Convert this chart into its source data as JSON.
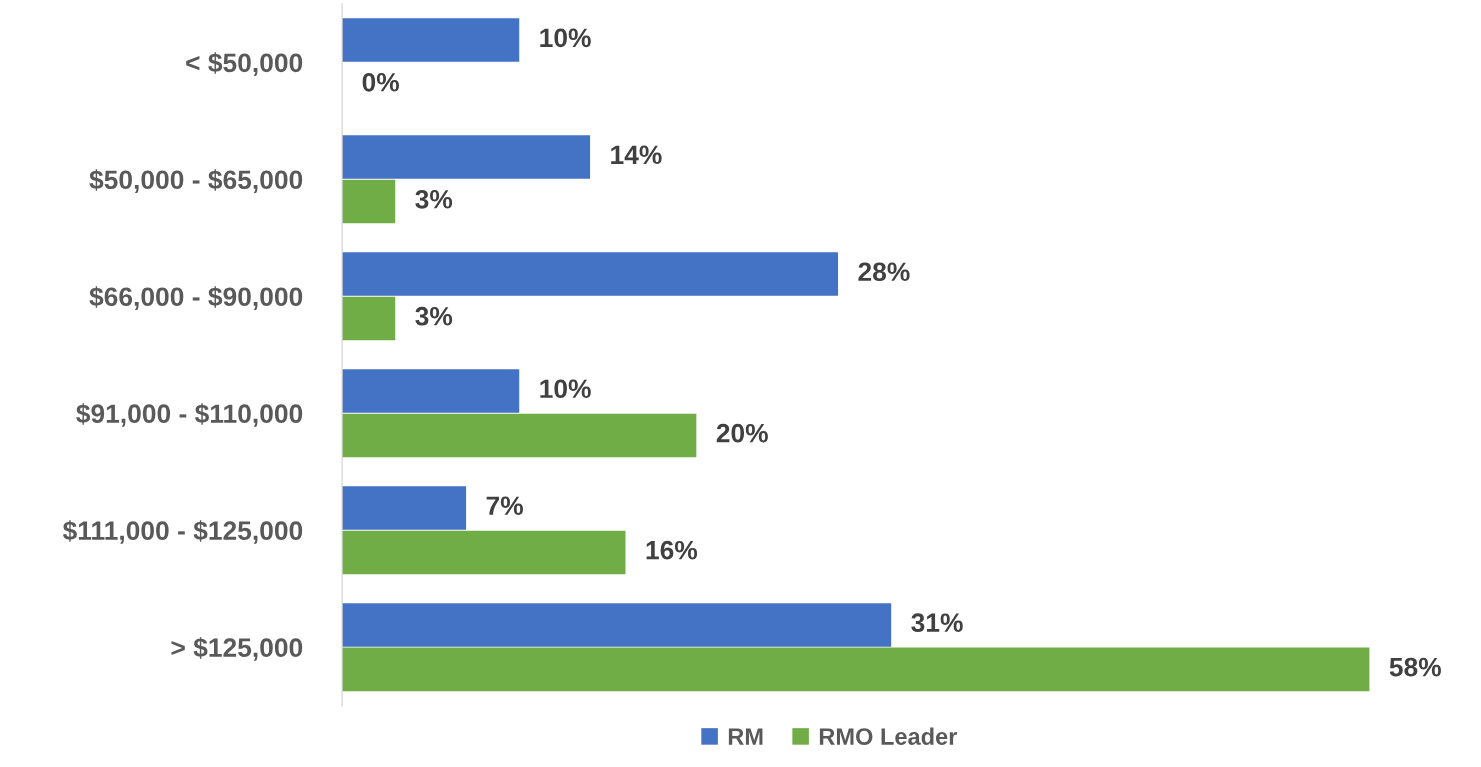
{
  "chart_data": {
    "type": "bar",
    "orientation": "horizontal",
    "categories": [
      "< $50,000",
      "$50,000 - $65,000",
      "$66,000 - $90,000",
      "$91,000 - $110,000",
      "$111,000 - $125,000",
      "> $125,000"
    ],
    "series": [
      {
        "name": "RM",
        "color": "#4472c4",
        "values": [
          10,
          14,
          28,
          10,
          7,
          31
        ],
        "value_labels": [
          "10%",
          "14%",
          "28%",
          "10%",
          "7%",
          "31%"
        ]
      },
      {
        "name": "RMO Leader",
        "color": "#70ad47",
        "values": [
          0,
          3,
          3,
          20,
          16,
          58
        ],
        "value_labels": [
          "0%",
          "3%",
          "3%",
          "20%",
          "16%",
          "58%"
        ]
      }
    ],
    "legend": "bottom",
    "grid": false,
    "tick_labels": "y"
  }
}
